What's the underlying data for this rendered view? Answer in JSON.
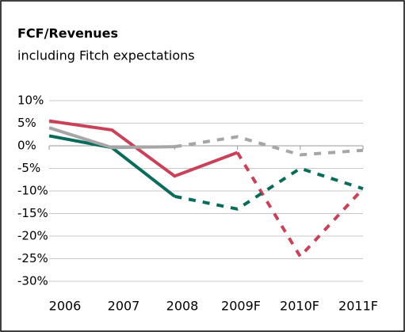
{
  "chart_data": {
    "type": "line",
    "title": "FCF/Revenues",
    "subtitle": "including Fitch expectations",
    "categories": [
      "2006",
      "2007",
      "2008",
      "2009F",
      "2010F",
      "2011F"
    ],
    "series": [
      {
        "color": "#c8435a",
        "dashed_from": 3,
        "values": [
          5.5,
          3.5,
          -6.7,
          -1.5,
          -24.5,
          -9.5
        ]
      },
      {
        "color": "#0b6b5a",
        "dashed_from": 2,
        "values": [
          2.2,
          -0.4,
          -11.2,
          -14,
          -5,
          -9.5
        ]
      },
      {
        "color": "#a6a6a6",
        "dashed_from": 2,
        "values": [
          4,
          -0.4,
          -0.2,
          2,
          -2,
          -1
        ]
      }
    ],
    "ylim": [
      -30,
      10
    ],
    "yticks": [
      {
        "value": 10,
        "label": "10%"
      },
      {
        "value": 5,
        "label": "5%"
      },
      {
        "value": 0,
        "label": "0%"
      },
      {
        "value": -5,
        "label": "-5%"
      },
      {
        "value": -10,
        "label": "-10%"
      },
      {
        "value": -15,
        "label": "-15%"
      },
      {
        "value": -20,
        "label": "-20%"
      },
      {
        "value": -25,
        "label": "-25%"
      },
      {
        "value": -30,
        "label": "-30%"
      }
    ],
    "grid": true
  }
}
